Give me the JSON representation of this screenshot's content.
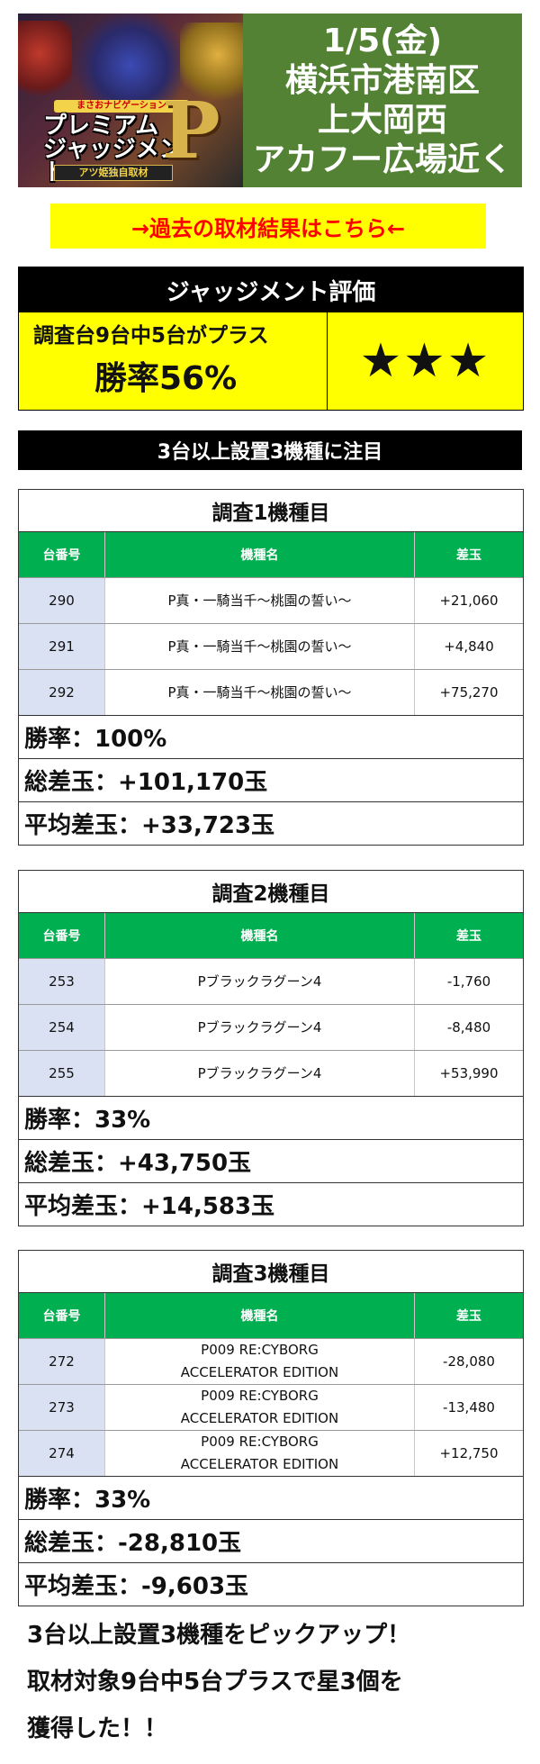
{
  "header": {
    "logo": {
      "subtitle": "まさおナビゲーション",
      "title_line1": "プレミアム",
      "title_line2": "ジャッジメント",
      "letter": "P",
      "footer": "アツ姫独自取材"
    },
    "date": "1/5(金)",
    "location_lines": [
      "横浜市港南区",
      "上大岡西",
      "アカフー広場近く"
    ]
  },
  "link_text": "→過去の取材結果はこちら←",
  "judgement": {
    "heading": "ジャッジメント評価",
    "summary": "調査台9台中5台がプラス",
    "win_rate": "勝率56%",
    "stars": "★★★"
  },
  "section_heading": "3台以上設置3機種に注目",
  "table_columns": {
    "unit": "台番号",
    "model": "機種名",
    "diff": "差玉"
  },
  "surveys": [
    {
      "title": "調査1機種目",
      "rows": [
        {
          "unit": "290",
          "model": "P真・一騎当千～桃園の誓い～",
          "diff": "+21,060"
        },
        {
          "unit": "291",
          "model": "P真・一騎当千～桃園の誓い～",
          "diff": "+4,840"
        },
        {
          "unit": "292",
          "model": "P真・一騎当千～桃園の誓い～",
          "diff": "+75,270"
        }
      ],
      "win_rate": "勝率：100%",
      "total": "総差玉：+101,170玉",
      "average": "平均差玉：+33,723玉"
    },
    {
      "title": "調査2機種目",
      "rows": [
        {
          "unit": "253",
          "model": "Pブラックラグーン4",
          "diff": "-1,760"
        },
        {
          "unit": "254",
          "model": "Pブラックラグーン4",
          "diff": "-8,480"
        },
        {
          "unit": "255",
          "model": "Pブラックラグーン4",
          "diff": "+53,990"
        }
      ],
      "win_rate": "勝率：33%",
      "total": "総差玉：+43,750玉",
      "average": "平均差玉：+14,583玉"
    },
    {
      "title": "調査3機種目",
      "rows": [
        {
          "unit": "272",
          "model_line1": "P009 RE:CYBORG",
          "model_line2": "ACCELERATOR EDITION",
          "diff": "-28,080"
        },
        {
          "unit": "273",
          "model_line1": "P009 RE:CYBORG",
          "model_line2": "ACCELERATOR EDITION",
          "diff": "-13,480"
        },
        {
          "unit": "274",
          "model_line1": "P009 RE:CYBORG",
          "model_line2": "ACCELERATOR EDITION",
          "diff": "+12,750"
        }
      ],
      "win_rate": "勝率：33%",
      "total": "総差玉：-28,810玉",
      "average": "平均差玉：-9,603玉"
    }
  ],
  "closing_lines": [
    "3台以上設置3機種をピックアップ！",
    "取材対象9台中5台プラスで星3個を",
    "獲得した！！"
  ],
  "colors": {
    "banner_green": "#548235",
    "table_header_green": "#00b050",
    "highlight_yellow": "#ffff00",
    "link_red": "#ff0000",
    "unit_cell_blue": "#d9e1f2"
  }
}
